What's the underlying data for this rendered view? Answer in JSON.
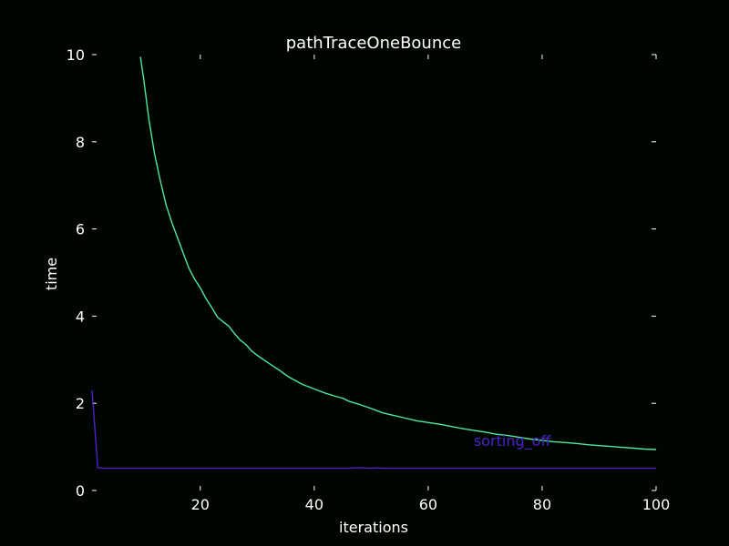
{
  "chart_data": {
    "type": "line",
    "title": "pathTraceOneBounce",
    "xlabel": "iterations",
    "ylabel": "time",
    "xlim": [
      1,
      100
    ],
    "ylim": [
      0,
      10
    ],
    "xticks": [
      20,
      40,
      60,
      80,
      100
    ],
    "yticks": [
      0,
      2,
      4,
      6,
      8,
      10
    ],
    "grid": false,
    "series": [
      {
        "name": "sorting_off",
        "color": "#4b22c8",
        "x": [
          1,
          2,
          3,
          10,
          20,
          30,
          40,
          46,
          47,
          48,
          50,
          51,
          52,
          60,
          70,
          80,
          90,
          100
        ],
        "y": [
          2.3,
          0.52,
          0.51,
          0.51,
          0.51,
          0.51,
          0.51,
          0.51,
          0.52,
          0.52,
          0.51,
          0.52,
          0.51,
          0.51,
          0.51,
          0.51,
          0.51,
          0.51
        ]
      },
      {
        "name": "",
        "color": "#4de8a0",
        "x": [
          9.5,
          10,
          11,
          12,
          13,
          14,
          15,
          16,
          17,
          18,
          19,
          20,
          21,
          22,
          23,
          24,
          25,
          26,
          27,
          28,
          29,
          30,
          32,
          34,
          35,
          36,
          38,
          40,
          42,
          44,
          45,
          46,
          48,
          50,
          52,
          54,
          56,
          58,
          60,
          62,
          64,
          66,
          68,
          70,
          72,
          74,
          76,
          78,
          80,
          82,
          84,
          86,
          88,
          90,
          92,
          94,
          96,
          98,
          100
        ],
        "y": [
          9.95,
          9.5,
          8.5,
          7.7,
          7.1,
          6.55,
          6.15,
          5.8,
          5.45,
          5.1,
          4.85,
          4.65,
          4.4,
          4.2,
          3.98,
          3.87,
          3.77,
          3.6,
          3.45,
          3.35,
          3.2,
          3.1,
          2.92,
          2.75,
          2.65,
          2.57,
          2.43,
          2.33,
          2.23,
          2.15,
          2.12,
          2.05,
          1.97,
          1.88,
          1.78,
          1.72,
          1.66,
          1.6,
          1.56,
          1.52,
          1.47,
          1.42,
          1.38,
          1.34,
          1.29,
          1.26,
          1.22,
          1.18,
          1.15,
          1.12,
          1.1,
          1.08,
          1.05,
          1.03,
          1.01,
          0.99,
          0.97,
          0.95,
          0.94
        ]
      }
    ],
    "series_labels": [
      {
        "text": "sorting_off",
        "x": 68,
        "y": 1.02,
        "color": "#4b22c8"
      }
    ]
  }
}
